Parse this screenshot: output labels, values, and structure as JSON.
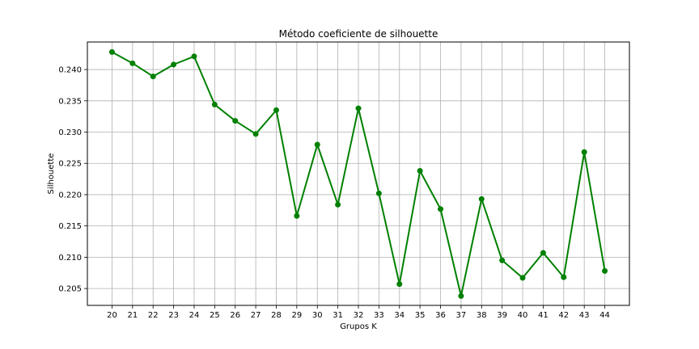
{
  "chart_data": {
    "type": "line",
    "title": "Método coeficiente de silhouette",
    "xlabel": "Grupos K",
    "ylabel": "Silhouette",
    "x": [
      20,
      21,
      22,
      23,
      24,
      25,
      26,
      27,
      28,
      29,
      30,
      31,
      32,
      33,
      34,
      35,
      36,
      37,
      38,
      39,
      40,
      41,
      42,
      43,
      44
    ],
    "series": [
      {
        "color": "#008000",
        "marker": "circle",
        "values": [
          0.2428,
          0.241,
          0.2389,
          0.2408,
          0.2421,
          0.2344,
          0.2318,
          0.2297,
          0.2335,
          0.2166,
          0.228,
          0.2184,
          0.2338,
          0.2202,
          0.2057,
          0.2238,
          0.2177,
          0.2038,
          0.2193,
          0.2095,
          0.2067,
          0.2107,
          0.2068,
          0.2268,
          0.2078
        ]
      }
    ],
    "xticks": [
      "20",
      "21",
      "22",
      "23",
      "24",
      "25",
      "26",
      "27",
      "28",
      "29",
      "30",
      "31",
      "32",
      "33",
      "34",
      "35",
      "36",
      "37",
      "38",
      "39",
      "40",
      "41",
      "42",
      "43",
      "44"
    ],
    "yticks": [
      "0.205",
      "0.210",
      "0.215",
      "0.220",
      "0.225",
      "0.230",
      "0.235",
      "0.240"
    ],
    "ylim": [
      0.2023,
      0.2444
    ],
    "grid": true,
    "legend": false
  }
}
